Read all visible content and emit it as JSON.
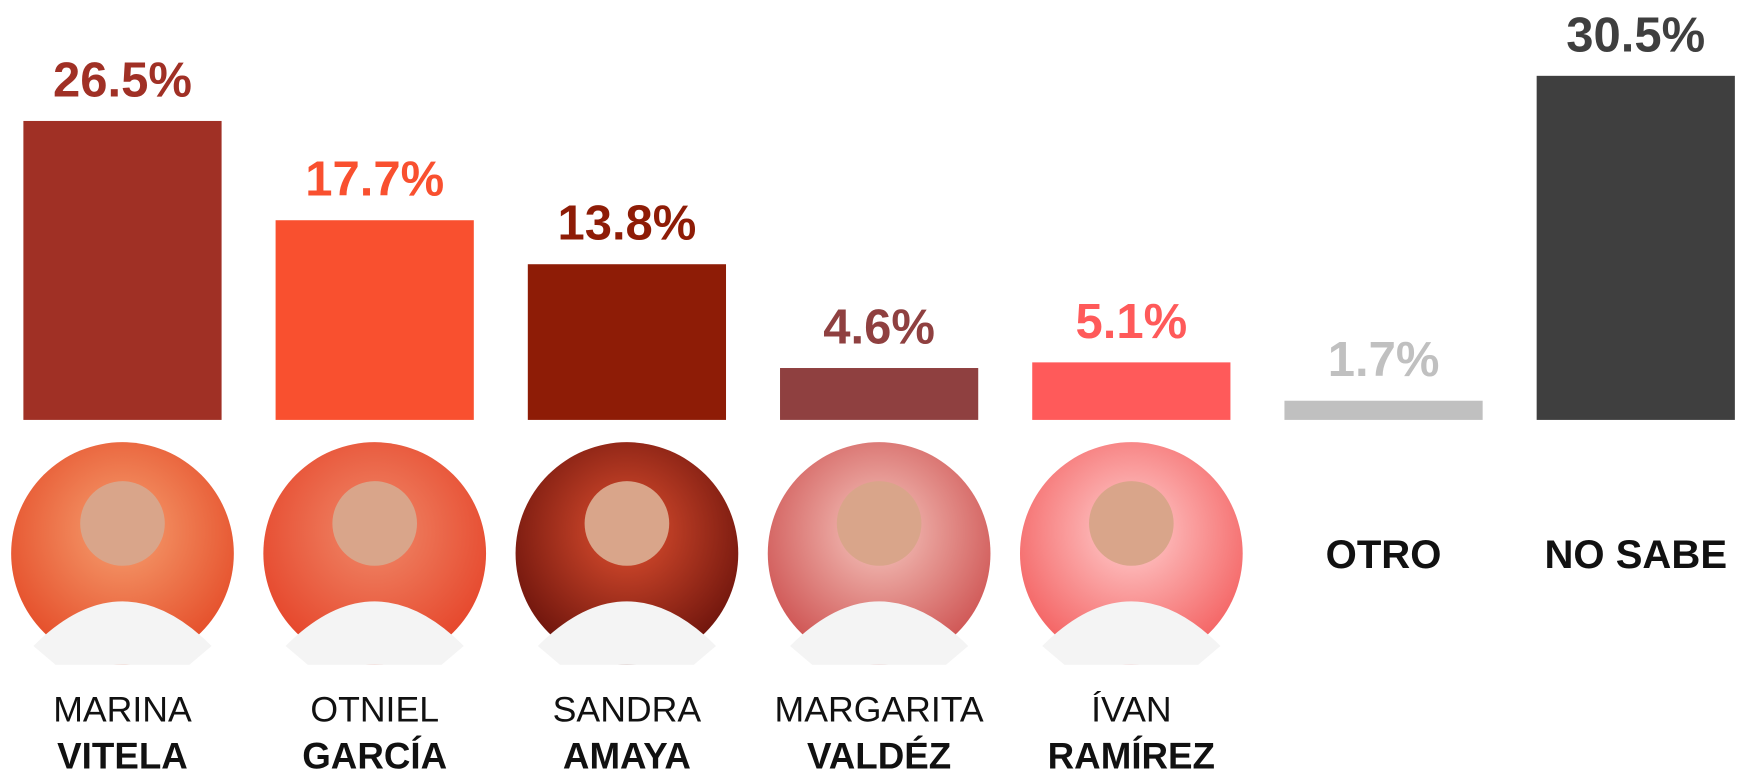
{
  "chart_data": {
    "type": "bar",
    "categories": [
      [
        "MARINA",
        "VITELA"
      ],
      [
        "OTNIEL",
        "GARCÍA"
      ],
      [
        "SANDRA",
        "AMAYA"
      ],
      [
        "MARGARITA",
        "VALDÉZ"
      ],
      [
        "ÍVAN",
        "RAMÍREZ"
      ],
      [
        "OTRO"
      ],
      [
        "NO SABE"
      ]
    ],
    "values": [
      26.5,
      17.7,
      13.8,
      4.6,
      5.1,
      1.7,
      30.5
    ],
    "value_labels": [
      "26.5%",
      "17.7%",
      "13.8%",
      "4.6%",
      "5.1%",
      "1.7%",
      "30.5%"
    ],
    "colors": [
      "#a03025",
      "#f9502f",
      "#8e1c06",
      "#8f4040",
      "#ff5a5a",
      "#c0c0c0",
      "#3f3f3f"
    ]
  }
}
